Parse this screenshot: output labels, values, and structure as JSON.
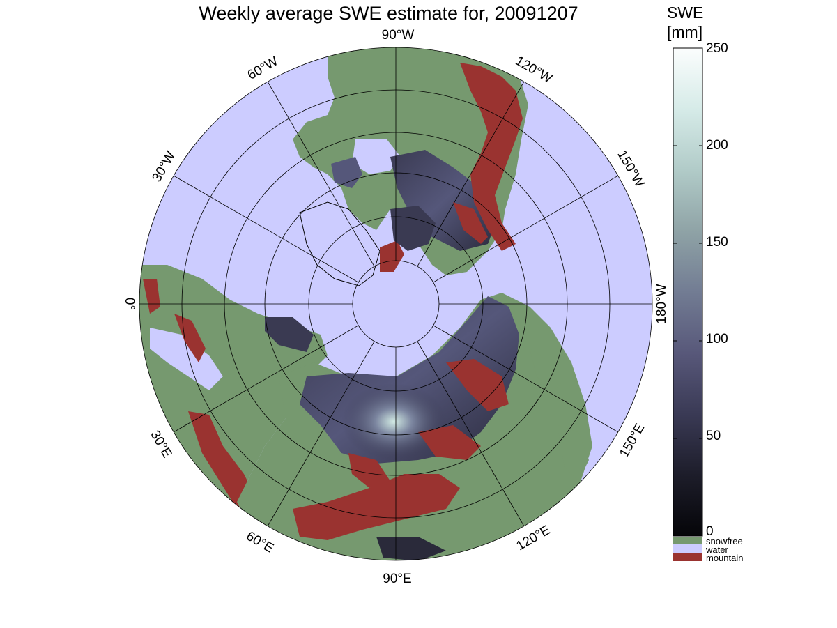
{
  "title": "Weekly average SWE estimate for, 20091207",
  "colorbar": {
    "title_line1": "SWE",
    "title_line2": "[mm]",
    "ticks": [
      "250",
      "200",
      "150",
      "100",
      "50",
      "0"
    ],
    "tick_values": [
      250,
      200,
      150,
      100,
      50,
      0
    ],
    "range": [
      0,
      250
    ],
    "gradient_colors": [
      "#050508",
      "#1d1d2a",
      "#3a3a55",
      "#58587a",
      "#727c93",
      "#8fa3a6",
      "#b1cbc8",
      "#d6ebe8",
      "#fbfdfd"
    ]
  },
  "legend": [
    {
      "label": "snowfree",
      "color": "#76996f"
    },
    {
      "label": "water",
      "color": "#ccccff"
    },
    {
      "label": "mountain",
      "color": "#9a3330"
    }
  ],
  "longitude_labels": [
    "90°W",
    "120°W",
    "150°W",
    "180°W",
    "150°E",
    "120°E",
    "90°E",
    "60°E",
    "30°E",
    "0°",
    "30°W",
    "60°W"
  ],
  "colors": {
    "ocean": "#ccccff",
    "land": "#76996f",
    "mountain": "#9a3330",
    "snow_dark": "#2a2a3a",
    "snow_mid": "#5a5a78",
    "snow_bright": "#c8e2dc"
  }
}
